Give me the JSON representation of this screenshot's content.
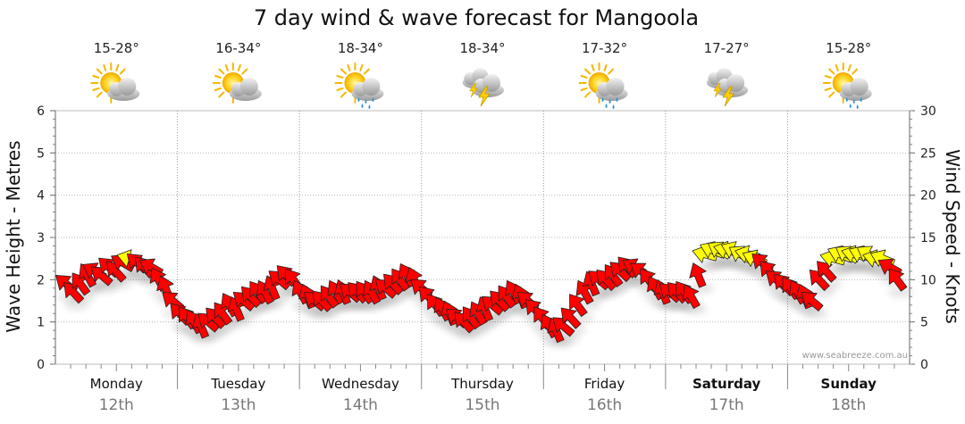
{
  "chart_data": {
    "type": "arrow-timeseries",
    "title": "7 day wind & wave forecast for Mangoola",
    "ylabel_left": "Wave Height - Metres",
    "ylabel_right": "Wind Speed - Knots",
    "ylim_left": [
      0,
      6
    ],
    "ylim_right": [
      0,
      30
    ],
    "left_ticks": [
      "0",
      "1",
      "2",
      "3",
      "4",
      "5",
      "6"
    ],
    "right_ticks": [
      "0",
      "5",
      "10",
      "15",
      "20",
      "25",
      "30"
    ],
    "days": [
      {
        "name": "Monday",
        "date": "12th",
        "temp": "15-28°",
        "icon": "partly-cloudy-icon",
        "weekend": false
      },
      {
        "name": "Tuesday",
        "date": "13th",
        "temp": "16-34°",
        "icon": "partly-cloudy-icon",
        "weekend": false
      },
      {
        "name": "Wednesday",
        "date": "14th",
        "temp": "18-34°",
        "icon": "sun-showers-icon",
        "weekend": false
      },
      {
        "name": "Thursday",
        "date": "15th",
        "temp": "18-34°",
        "icon": "thunderstorm-icon",
        "weekend": false
      },
      {
        "name": "Friday",
        "date": "16th",
        "temp": "17-32°",
        "icon": "sun-showers-icon",
        "weekend": false
      },
      {
        "name": "Saturday",
        "date": "17th",
        "temp": "17-27°",
        "icon": "thunderstorm-icon",
        "weekend": true
      },
      {
        "name": "Sunday",
        "date": "18th",
        "temp": "15-28°",
        "icon": "sun-showers-icon",
        "weekend": true
      }
    ],
    "wind_speed_knots": [
      9.5,
      8.5,
      9.5,
      10.5,
      11,
      10.5,
      11.5,
      11,
      12,
      12.5,
      12,
      11.5,
      11.5,
      10,
      9,
      7.5,
      6,
      5.5,
      5,
      4.5,
      5,
      5.5,
      6,
      7,
      6.5,
      7.5,
      8,
      8.5,
      8.5,
      9,
      10,
      10.5,
      10,
      8.5,
      8,
      7.5,
      7.5,
      8,
      8.5,
      8.5,
      8.5,
      8.5,
      8.5,
      8.5,
      9,
      9,
      9.5,
      10,
      10.5,
      10,
      9,
      8,
      7,
      6.5,
      6,
      5.5,
      5,
      5.5,
      6,
      6.5,
      7,
      7.5,
      8,
      8.5,
      8,
      7.5,
      6.5,
      5.5,
      4.5,
      4,
      4.5,
      5.5,
      7,
      8.5,
      9.5,
      10,
      10,
      10.5,
      11,
      11.5,
      11.5,
      11,
      10,
      9,
      8.5,
      8.5,
      8.5,
      8.5,
      8,
      10.5,
      13,
      13.5,
      13.5,
      13.5,
      13.5,
      13,
      13,
      12.5,
      12,
      11,
      10,
      9.5,
      9,
      8.5,
      8,
      7.5,
      10,
      11,
      12.5,
      13,
      13,
      13,
      13,
      13,
      12.5,
      12.5,
      11.5,
      10
    ],
    "wind_colors": [
      "#ff0000",
      "#ffff00"
    ],
    "credit": "www.seabreeze.com.au"
  }
}
